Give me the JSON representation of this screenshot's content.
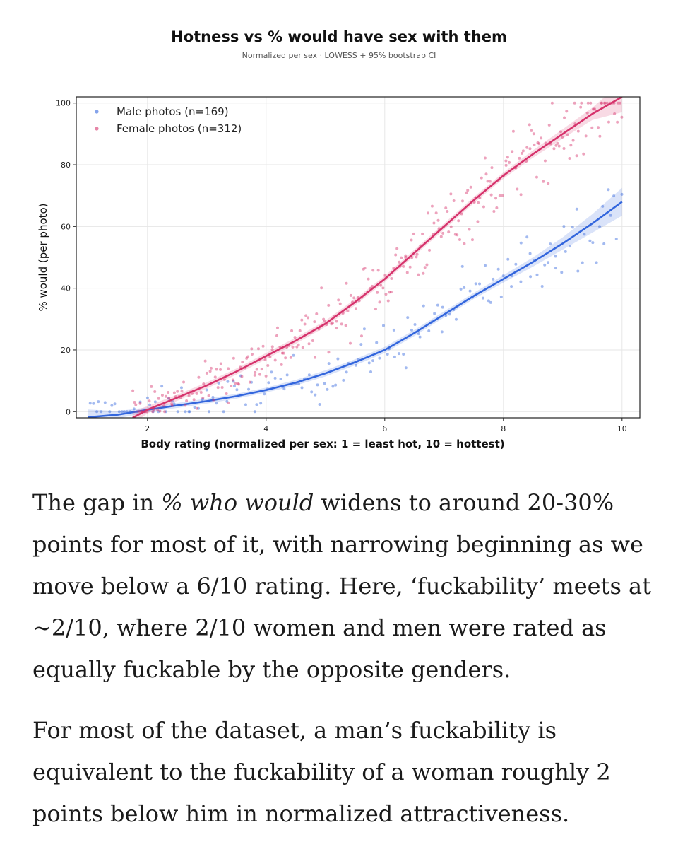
{
  "chart_data": {
    "type": "scatter",
    "title": "Hotness vs % would have sex with them",
    "subtitle": "Normalized per sex · LOWESS + 95% bootstrap CI",
    "xlabel": "Body rating (normalized per sex: 1 = least hot, 10 = hottest)",
    "ylabel": "% would (per photo)",
    "xlim": [
      0.8,
      10.3
    ],
    "ylim": [
      -2,
      102
    ],
    "xticks": [
      2,
      4,
      6,
      8,
      10
    ],
    "yticks": [
      0,
      20,
      40,
      60,
      80,
      100
    ],
    "grid": true,
    "legend_position": "top-left",
    "series": [
      {
        "name": "Male photos (n=169)",
        "color": "#3366dd",
        "lowess": [
          [
            1.0,
            -1.8
          ],
          [
            1.5,
            -1.0
          ],
          [
            2.0,
            0.6
          ],
          [
            2.5,
            2.0
          ],
          [
            3.0,
            3.4
          ],
          [
            3.5,
            5.0
          ],
          [
            4.0,
            7.0
          ],
          [
            4.5,
            9.4
          ],
          [
            5.0,
            12.4
          ],
          [
            5.5,
            16.0
          ],
          [
            6.0,
            20.0
          ],
          [
            6.5,
            25.5
          ],
          [
            7.0,
            31.5
          ],
          [
            7.5,
            37.5
          ],
          [
            8.0,
            43.0
          ],
          [
            8.5,
            48.5
          ],
          [
            9.0,
            54.5
          ],
          [
            9.5,
            61.0
          ],
          [
            10.0,
            68.0
          ]
        ],
        "ci_width": [
          2.5,
          1.2,
          0.8,
          0.8,
          0.8,
          0.8,
          0.8,
          0.9,
          1.0,
          1.0,
          1.0,
          1.0,
          1.0,
          1.0,
          1.2,
          1.5,
          2.0,
          3.0,
          4.5
        ],
        "points_hint": "169 photo points scattered around the LOWESS curve"
      },
      {
        "name": "Female photos (n=312)",
        "color": "#d6336c",
        "lowess": [
          [
            1.75,
            -2.0
          ],
          [
            2.0,
            0.6
          ],
          [
            2.5,
            4.5
          ],
          [
            3.0,
            8.5
          ],
          [
            3.5,
            13.0
          ],
          [
            4.0,
            18.0
          ],
          [
            4.5,
            23.0
          ],
          [
            5.0,
            28.5
          ],
          [
            5.5,
            35.5
          ],
          [
            6.0,
            43.0
          ],
          [
            6.5,
            51.5
          ],
          [
            7.0,
            60.0
          ],
          [
            7.5,
            68.5
          ],
          [
            8.0,
            76.5
          ],
          [
            8.5,
            83.5
          ],
          [
            9.0,
            90.0
          ],
          [
            9.5,
            96.5
          ],
          [
            10.0,
            102.0
          ]
        ],
        "ci_width": [
          2.0,
          1.2,
          1.0,
          1.0,
          1.0,
          1.0,
          1.0,
          1.0,
          1.0,
          1.0,
          1.0,
          1.0,
          1.0,
          1.0,
          1.2,
          1.5,
          2.0,
          5.0
        ],
        "points_hint": "312 photo points scattered around the LOWESS curve"
      }
    ]
  },
  "article": {
    "p1_before": "The gap in ",
    "p1_emph": "% who would",
    "p1_after": " widens to around 20-30% points for most of it, with narrowing beginning as we move below a 6/10 rating. Here, ‘fuckability’ meets at ~2/10, where 2/10 women and men were rated as equally fuckable by the opposite genders.",
    "p2": "For most of the dataset, a man’s fuckability is equivalent to the fuckability of a woman roughly 2 points below him in normalized attractiveness."
  }
}
